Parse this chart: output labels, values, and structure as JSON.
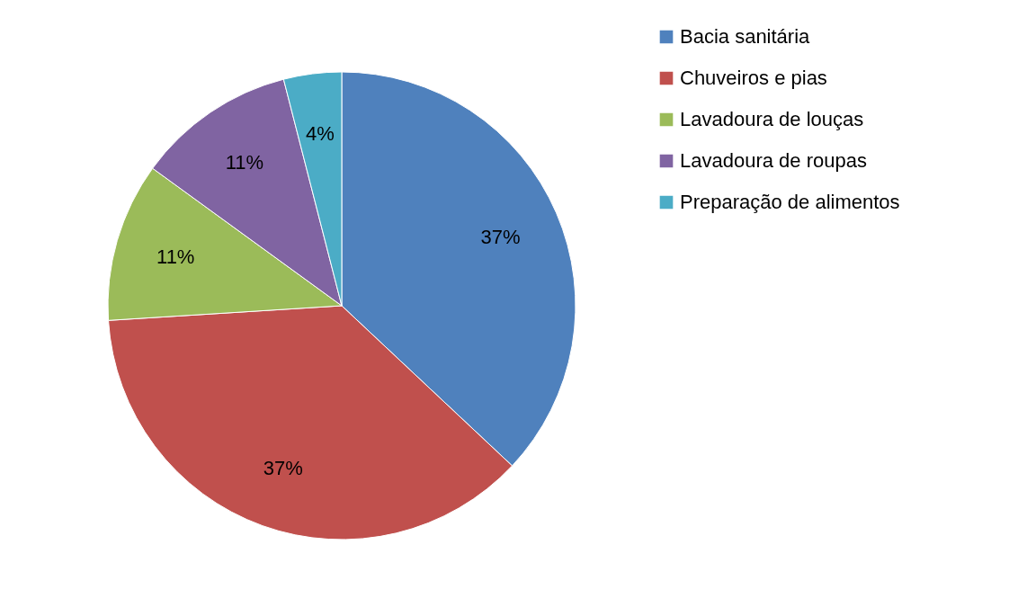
{
  "chart_data": {
    "type": "pie",
    "categories": [
      "Bacia sanitária",
      "Chuveiros e pias",
      "Lavadoura de louças",
      "Lavadoura de roupas",
      "Preparação de alimentos"
    ],
    "values": [
      37,
      37,
      11,
      11,
      4
    ],
    "colors": [
      "#4f81bd",
      "#c0504d",
      "#9bbb59",
      "#8064a2",
      "#4bacc6"
    ],
    "value_labels": [
      "37%",
      "37%",
      "11%",
      "11%",
      "4%"
    ],
    "legend": "right"
  }
}
